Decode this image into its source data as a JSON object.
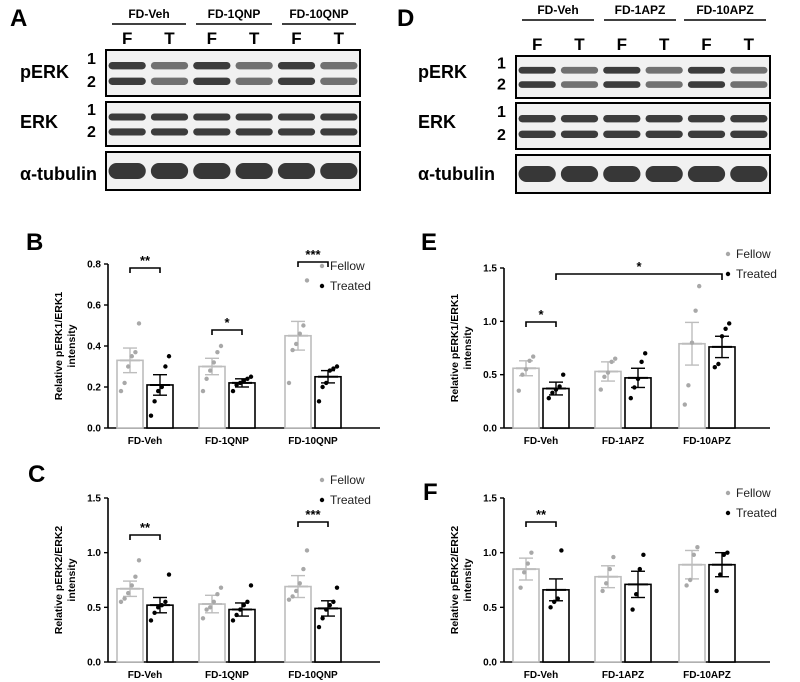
{
  "panel_letters": {
    "A": "A",
    "B": "B",
    "C": "C",
    "D": "D",
    "E": "E",
    "F": "F"
  },
  "blots": [
    {
      "panel": "A",
      "groups": [
        "FD-Veh",
        "FD-1QNP",
        "FD-10QNP"
      ],
      "lanes": [
        "F",
        "T",
        "F",
        "T",
        "F",
        "T"
      ],
      "rows": [
        {
          "label": "pERK",
          "sub": [
            "1",
            "2"
          ]
        },
        {
          "label": "ERK",
          "sub": [
            "1",
            "2"
          ]
        },
        {
          "label": "α-tubulin",
          "sub": []
        }
      ]
    },
    {
      "panel": "D",
      "groups": [
        "FD-Veh",
        "FD-1APZ",
        "FD-10APZ"
      ],
      "lanes": [
        "F",
        "T",
        "F",
        "T",
        "F",
        "T"
      ],
      "rows": [
        {
          "label": "pERK",
          "sub": [
            "1",
            "2"
          ]
        },
        {
          "label": "ERK",
          "sub": [
            "1",
            "2"
          ]
        },
        {
          "label": "α-tubulin",
          "sub": []
        }
      ]
    }
  ],
  "chart_data": [
    {
      "panel": "B",
      "type": "bar",
      "categories": [
        "FD-Veh",
        "FD-1QNP",
        "FD-10QNP"
      ],
      "ylabel": [
        "Relative pERK1/ERK1",
        "intensity"
      ],
      "ylim": [
        0,
        0.8
      ],
      "yticks": [
        "0.0",
        "0.2",
        "0.4",
        "0.6",
        "0.8"
      ],
      "legend": [
        "Fellow",
        "Treated"
      ],
      "legend_position": "top-right",
      "series": [
        {
          "name": "Fellow",
          "values": [
            0.33,
            0.3,
            0.45
          ],
          "sem": [
            0.06,
            0.04,
            0.07
          ],
          "points": [
            [
              0.18,
              0.22,
              0.3,
              0.35,
              0.37,
              0.51
            ],
            [
              0.18,
              0.24,
              0.28,
              0.32,
              0.37,
              0.4
            ],
            [
              0.22,
              0.38,
              0.41,
              0.46,
              0.5,
              0.72
            ]
          ]
        },
        {
          "name": "Treated",
          "values": [
            0.21,
            0.22,
            0.25
          ],
          "sem": [
            0.05,
            0.02,
            0.03
          ],
          "points": [
            [
              0.06,
              0.13,
              0.18,
              0.2,
              0.3,
              0.35
            ],
            [
              0.18,
              0.21,
              0.22,
              0.23,
              0.24,
              0.25
            ],
            [
              0.13,
              0.2,
              0.22,
              0.28,
              0.29,
              0.3
            ]
          ]
        }
      ],
      "significance": [
        {
          "category": "FD-Veh",
          "text": "**"
        },
        {
          "category": "FD-1QNP",
          "text": "*"
        },
        {
          "category": "FD-10QNP",
          "text": "***"
        }
      ]
    },
    {
      "panel": "C",
      "type": "bar",
      "categories": [
        "FD-Veh",
        "FD-1QNP",
        "FD-10QNP"
      ],
      "ylabel": [
        "Relative pERK2/ERK2",
        "intensity"
      ],
      "ylim": [
        0,
        1.5
      ],
      "yticks": [
        "0.0",
        "0.5",
        "1.0",
        "1.5"
      ],
      "legend": [
        "Fellow",
        "Treated"
      ],
      "legend_position": "top-right",
      "series": [
        {
          "name": "Fellow",
          "values": [
            0.67,
            0.53,
            0.69
          ],
          "sem": [
            0.07,
            0.08,
            0.1
          ],
          "points": [
            [
              0.55,
              0.58,
              0.63,
              0.7,
              0.78,
              0.93
            ],
            [
              0.4,
              0.48,
              0.5,
              0.55,
              0.62,
              0.68
            ],
            [
              0.57,
              0.6,
              0.65,
              0.72,
              0.85,
              1.02
            ]
          ]
        },
        {
          "name": "Treated",
          "values": [
            0.52,
            0.48,
            0.49
          ],
          "sem": [
            0.07,
            0.06,
            0.07
          ],
          "points": [
            [
              0.38,
              0.45,
              0.5,
              0.52,
              0.55,
              0.8
            ],
            [
              0.38,
              0.43,
              0.48,
              0.52,
              0.55,
              0.7
            ],
            [
              0.32,
              0.4,
              0.48,
              0.52,
              0.55,
              0.68
            ]
          ]
        }
      ],
      "significance": [
        {
          "category": "FD-Veh",
          "text": "**"
        },
        {
          "category": "FD-10QNP",
          "text": "***"
        }
      ]
    },
    {
      "panel": "E",
      "type": "bar",
      "categories": [
        "FD-Veh",
        "FD-1APZ",
        "FD-10APZ"
      ],
      "ylabel": [
        "Relative pERK1/ERK1",
        "intensity"
      ],
      "ylim": [
        0,
        1.5
      ],
      "yticks": [
        "0.0",
        "0.5",
        "1.0",
        "1.5"
      ],
      "legend": [
        "Fellow",
        "Treated"
      ],
      "legend_position": "top-right",
      "series": [
        {
          "name": "Fellow",
          "values": [
            0.56,
            0.53,
            0.79
          ],
          "sem": [
            0.07,
            0.09,
            0.2
          ],
          "points": [
            [
              0.35,
              0.5,
              0.55,
              0.63,
              0.67
            ],
            [
              0.36,
              0.48,
              0.52,
              0.62,
              0.65
            ],
            [
              0.22,
              0.4,
              0.8,
              1.1,
              1.33
            ]
          ]
        },
        {
          "name": "Treated",
          "values": [
            0.37,
            0.47,
            0.76
          ],
          "sem": [
            0.06,
            0.09,
            0.1
          ],
          "points": [
            [
              0.28,
              0.33,
              0.36,
              0.39,
              0.5
            ],
            [
              0.28,
              0.38,
              0.46,
              0.62,
              0.7
            ],
            [
              0.57,
              0.6,
              0.86,
              0.93,
              0.98
            ]
          ]
        }
      ],
      "significance": [
        {
          "category": "FD-Veh",
          "text": "*"
        }
      ],
      "cross_significance": [
        {
          "from": "FD-Veh",
          "to": "FD-10APZ",
          "text": "*"
        }
      ]
    },
    {
      "panel": "F",
      "type": "bar",
      "categories": [
        "FD-Veh",
        "FD-1APZ",
        "FD-10APZ"
      ],
      "ylabel": [
        "Relative pERK2/ERK2",
        "intensity"
      ],
      "ylim": [
        0,
        1.5
      ],
      "yticks": [
        "0.0",
        "0.5",
        "1.0",
        "1.5"
      ],
      "legend": [
        "Fellow",
        "Treated"
      ],
      "legend_position": "top-right",
      "series": [
        {
          "name": "Fellow",
          "values": [
            0.85,
            0.78,
            0.89
          ],
          "sem": [
            0.1,
            0.1,
            0.13
          ],
          "points": [
            [
              0.68,
              0.82,
              0.9,
              1.0
            ],
            [
              0.65,
              0.72,
              0.85,
              0.96
            ],
            [
              0.7,
              0.75,
              0.98,
              1.05
            ]
          ]
        },
        {
          "name": "Treated",
          "values": [
            0.66,
            0.71,
            0.89
          ],
          "sem": [
            0.1,
            0.12,
            0.11
          ],
          "points": [
            [
              0.5,
              0.55,
              0.58,
              1.02
            ],
            [
              0.48,
              0.62,
              0.85,
              0.98
            ],
            [
              0.65,
              0.8,
              0.98,
              1.0
            ]
          ]
        }
      ],
      "significance": [
        {
          "category": "FD-Veh",
          "text": "**"
        }
      ]
    }
  ]
}
